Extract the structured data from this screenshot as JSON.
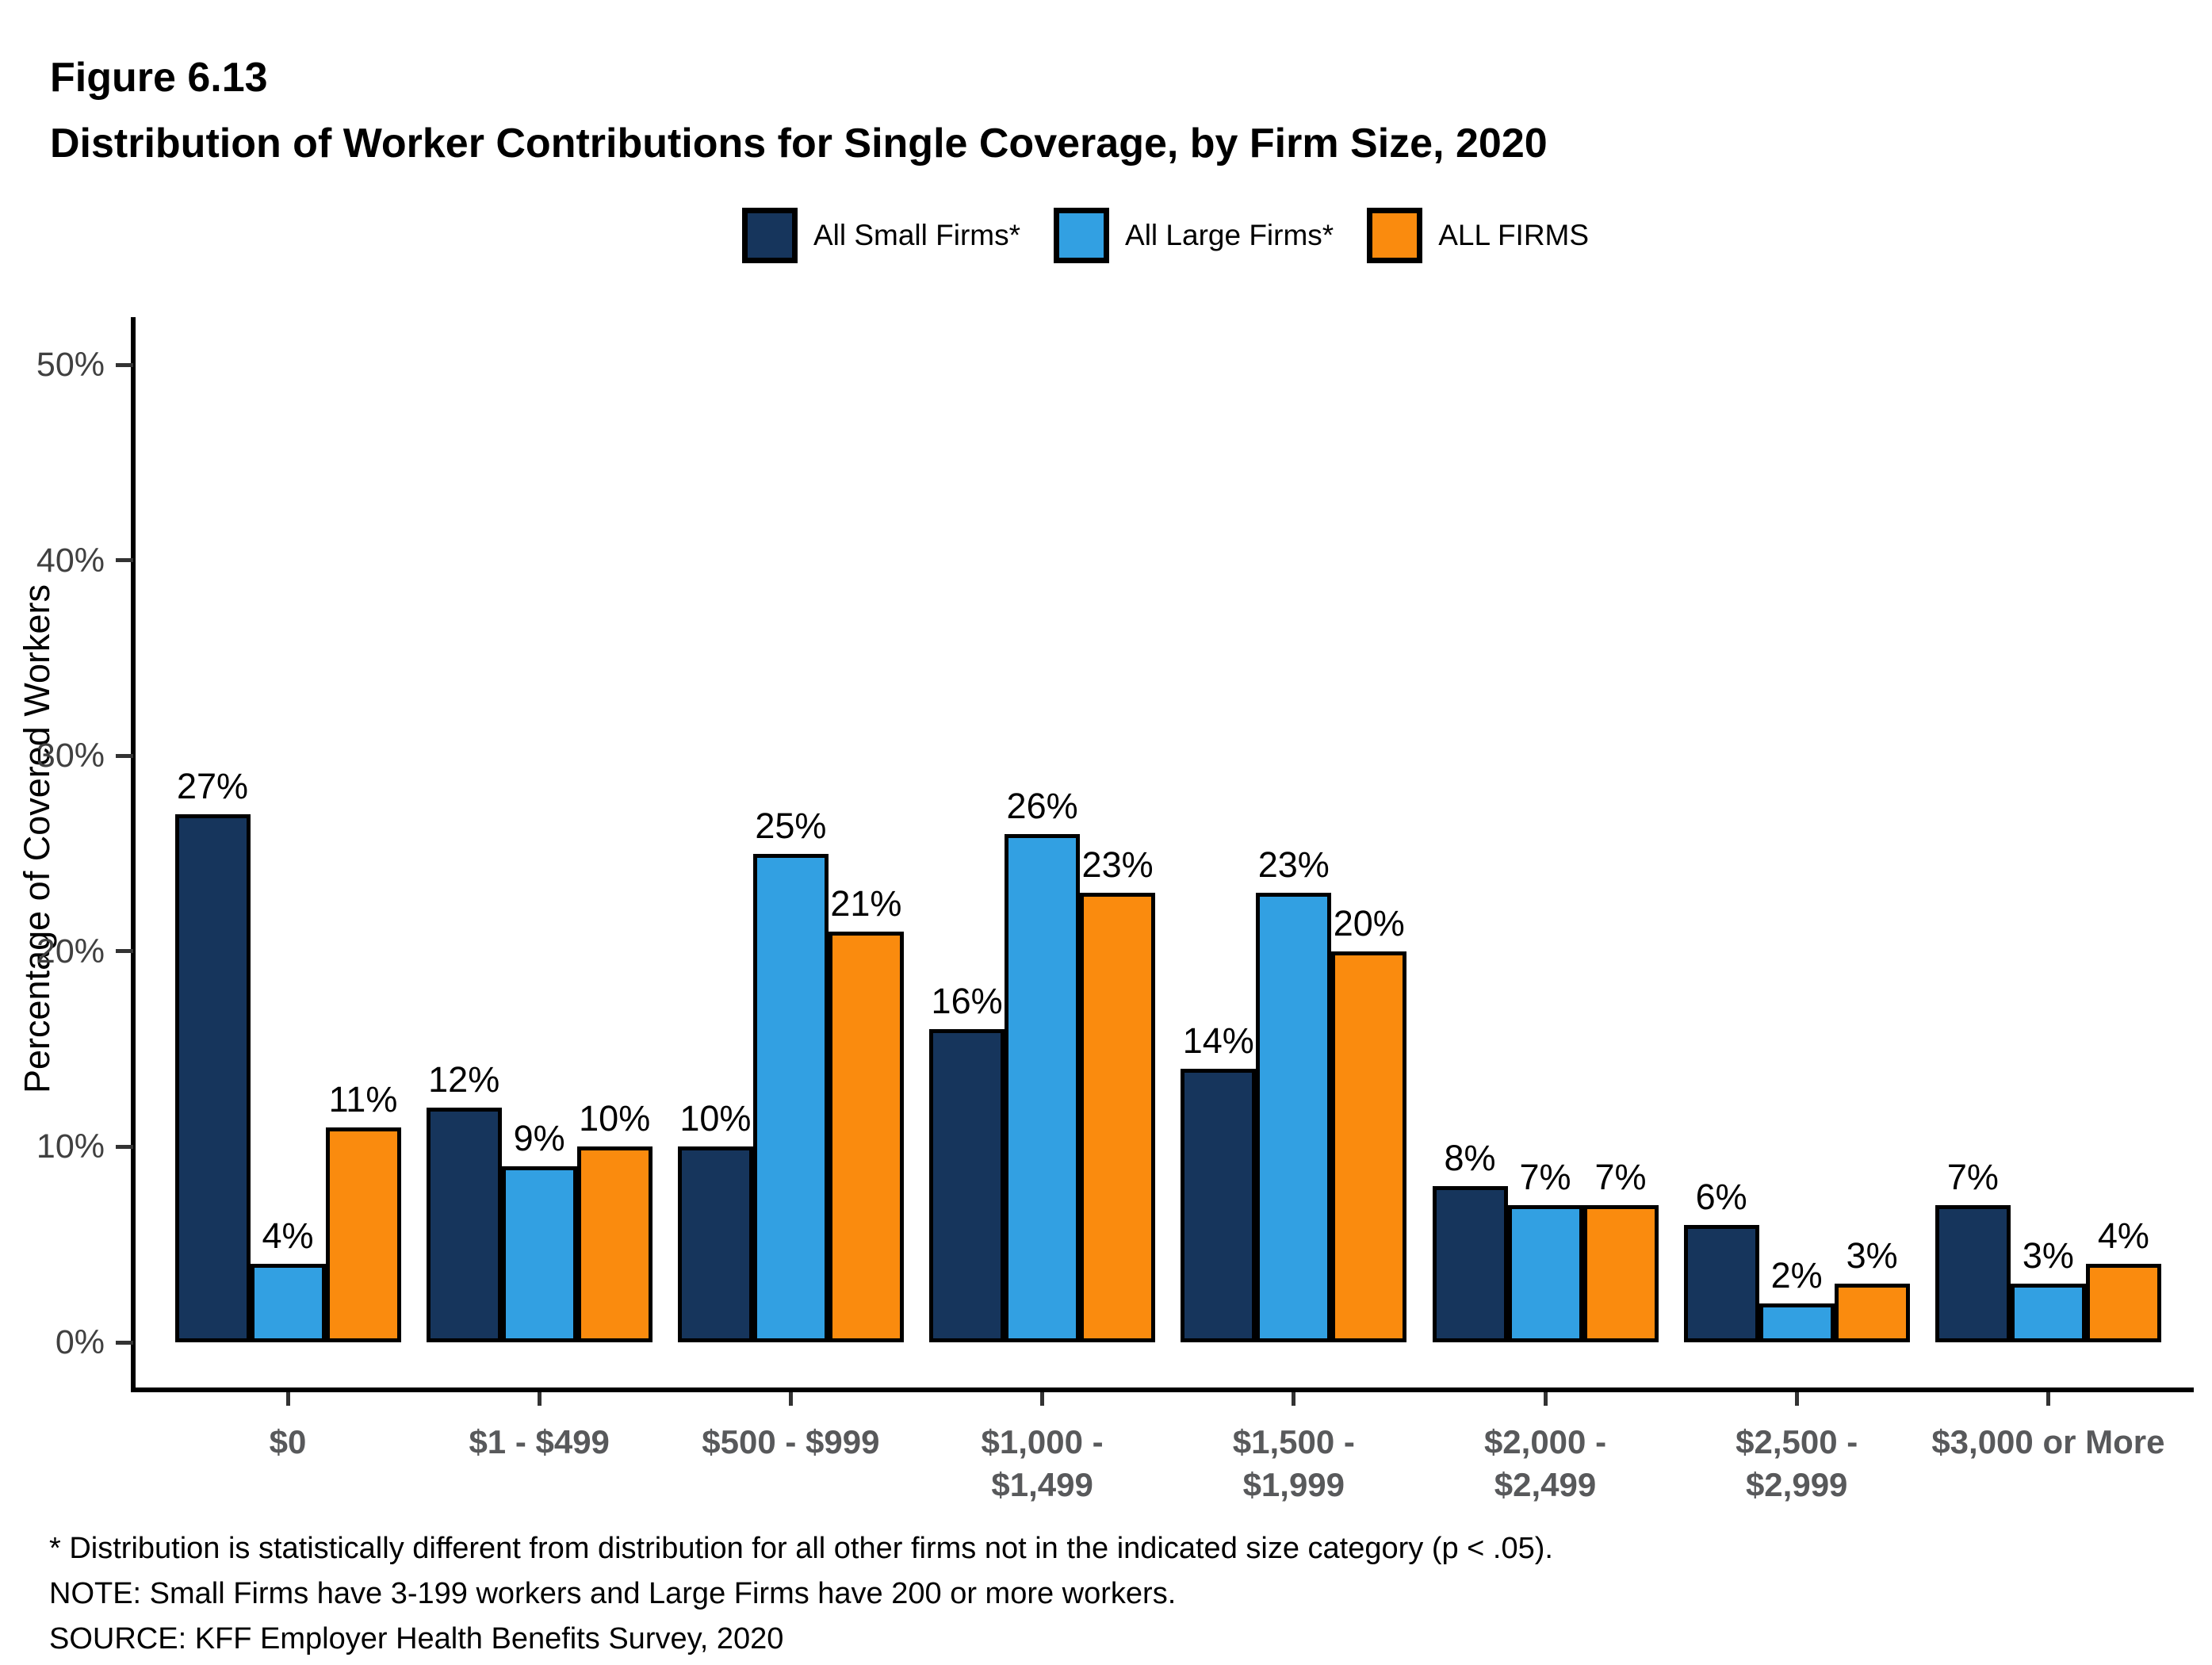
{
  "header": {
    "figure_label": "Figure 6.13",
    "title": "Distribution of Worker Contributions for Single Coverage, by Firm Size, 2020"
  },
  "chart_data": {
    "type": "bar",
    "title": "Figure 6.13",
    "subtitle": "Distribution of Worker Contributions for Single Coverage, by Firm Size, 2020",
    "ylabel": "Percentage of Covered Workers",
    "xlabel": "",
    "ylim": [
      0,
      52
    ],
    "y_ticks": [
      0,
      10,
      20,
      30,
      40,
      50
    ],
    "y_tick_suffix": "%",
    "grid": false,
    "legend_position": "top-center",
    "value_suffix": "%",
    "categories": [
      "$0",
      "$1 - $499",
      "$500 - $999",
      "$1,000 -\n$1,499",
      "$1,500 -\n$1,999",
      "$2,000 -\n$2,499",
      "$2,500 -\n$2,999",
      "$3,000 or More"
    ],
    "series": [
      {
        "name": "All Small Firms*",
        "color": "#16355C",
        "values": [
          27,
          12,
          10,
          16,
          14,
          8,
          6,
          7
        ]
      },
      {
        "name": "All Large Firms*",
        "color": "#32A0E2",
        "values": [
          4,
          9,
          25,
          26,
          23,
          7,
          2,
          3
        ]
      },
      {
        "name": "ALL FIRMS",
        "color": "#FA8B0E",
        "values": [
          11,
          10,
          21,
          23,
          20,
          7,
          3,
          4
        ]
      }
    ]
  },
  "footnotes": {
    "star": "* Distribution is statistically different from distribution for all other firms not in the indicated size category (p < .05).",
    "note": "NOTE: Small Firms have 3-199 workers and Large Firms have 200 or more workers.",
    "source": "SOURCE: KFF Employer Health Benefits Survey, 2020"
  }
}
